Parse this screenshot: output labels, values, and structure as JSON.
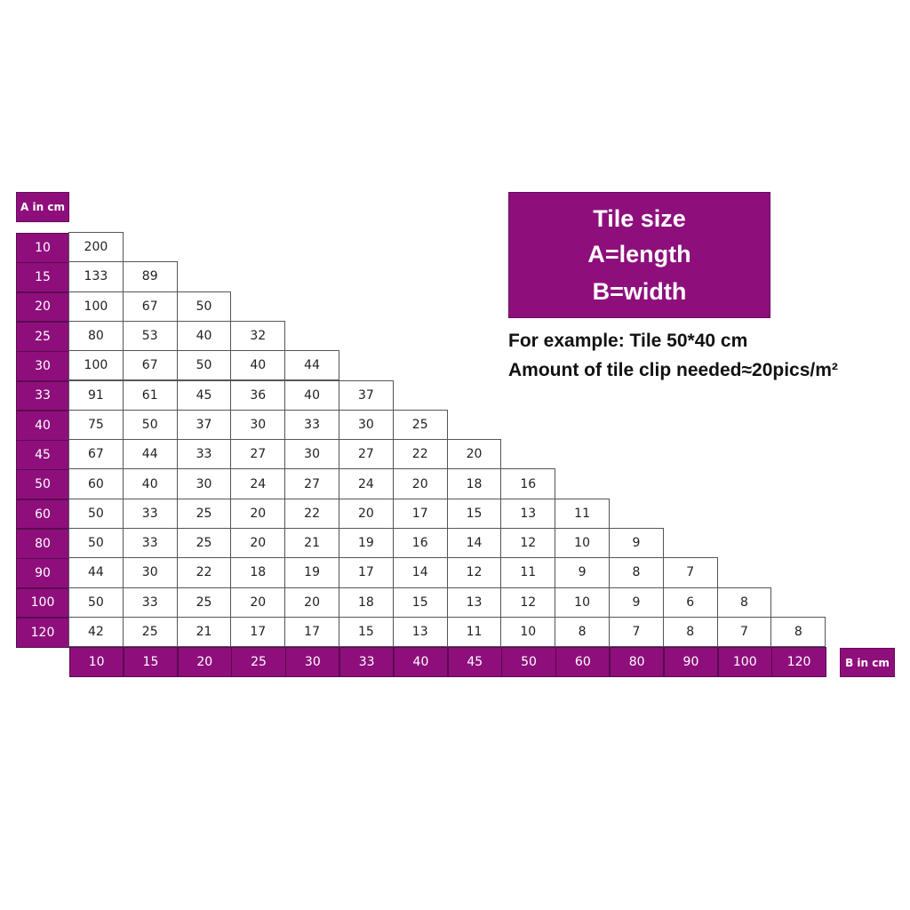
{
  "colors": {
    "header": "#8e0f7c",
    "cell": "#ffffff",
    "border": "#555555"
  },
  "info": {
    "title": "Tile size",
    "line_a": "A=length",
    "line_b": "B=width",
    "example": "For example: Tile 50*40 cm",
    "amount": "Amount of tile clip needed≈20pics/m²"
  },
  "chart_data": {
    "type": "table",
    "row_axis_label": "A in cm",
    "col_axis_label": "B in cm",
    "rows": [
      "10",
      "15",
      "20",
      "25",
      "30",
      "33",
      "40",
      "45",
      "50",
      "60",
      "80",
      "90",
      "100",
      "120"
    ],
    "cols": [
      "10",
      "15",
      "20",
      "25",
      "30",
      "33",
      "40",
      "45",
      "50",
      "60",
      "80",
      "90",
      "100",
      "120"
    ],
    "values": [
      [
        "200"
      ],
      [
        "133",
        "89"
      ],
      [
        "100",
        "67",
        "50"
      ],
      [
        "80",
        "53",
        "40",
        "32"
      ],
      [
        "100",
        "67",
        "50",
        "40",
        "44"
      ],
      [
        "91",
        "61",
        "45",
        "36",
        "40",
        "37"
      ],
      [
        "75",
        "50",
        "37",
        "30",
        "33",
        "30",
        "25"
      ],
      [
        "67",
        "44",
        "33",
        "27",
        "30",
        "27",
        "22",
        "20"
      ],
      [
        "60",
        "40",
        "30",
        "24",
        "27",
        "24",
        "20",
        "18",
        "16"
      ],
      [
        "50",
        "33",
        "25",
        "20",
        "22",
        "20",
        "17",
        "15",
        "13",
        "11"
      ],
      [
        "50",
        "33",
        "25",
        "20",
        "21",
        "19",
        "16",
        "14",
        "12",
        "10",
        "9"
      ],
      [
        "44",
        "30",
        "22",
        "18",
        "19",
        "17",
        "14",
        "12",
        "11",
        "9",
        "8",
        "7"
      ],
      [
        "50",
        "33",
        "25",
        "20",
        "20",
        "18",
        "15",
        "13",
        "12",
        "10",
        "9",
        "6",
        "8"
      ],
      [
        "42",
        "25",
        "21",
        "17",
        "17",
        "15",
        "13",
        "11",
        "10",
        "8",
        "7",
        "8",
        "7",
        "8"
      ]
    ]
  }
}
